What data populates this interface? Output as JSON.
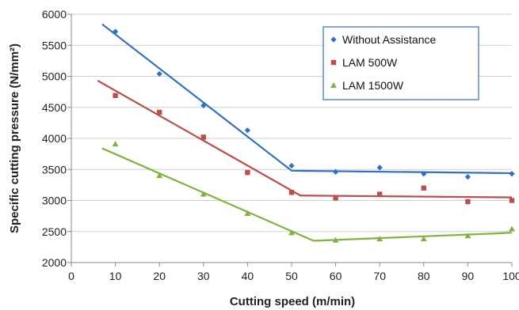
{
  "chart_data": {
    "type": "scatter",
    "xlabel": "Cutting speed (m/min)",
    "ylabel": "Specific cutting pressure (N/mm²)",
    "xlim": [
      0,
      100
    ],
    "ylim": [
      2000,
      6000
    ],
    "xticks": [
      "0",
      "10",
      "20",
      "30",
      "40",
      "50",
      "60",
      "70",
      "80",
      "90",
      "100"
    ],
    "yticks": [
      "2000",
      "2500",
      "3000",
      "3500",
      "4000",
      "4500",
      "5000",
      "5500",
      "6000"
    ],
    "grid": "horizontal",
    "legend_position": "top-right",
    "series": [
      {
        "name": "Without Assistance",
        "color": "#2f6fc4",
        "marker": "diamond",
        "points": [
          [
            10,
            5720
          ],
          [
            20,
            5040
          ],
          [
            30,
            4530
          ],
          [
            40,
            4130
          ],
          [
            50,
            3560
          ],
          [
            60,
            3460
          ],
          [
            70,
            3530
          ],
          [
            80,
            3430
          ],
          [
            90,
            3380
          ],
          [
            100,
            3430
          ]
        ],
        "trend": [
          [
            7,
            5840
          ],
          [
            50,
            3480
          ],
          [
            100,
            3440
          ]
        ]
      },
      {
        "name": "LAM 500W",
        "color": "#b8504b",
        "marker": "square",
        "points": [
          [
            10,
            4690
          ],
          [
            20,
            4420
          ],
          [
            30,
            4020
          ],
          [
            40,
            3450
          ],
          [
            50,
            3130
          ],
          [
            60,
            3040
          ],
          [
            70,
            3100
          ],
          [
            80,
            3200
          ],
          [
            90,
            2980
          ],
          [
            100,
            3000
          ]
        ],
        "trend": [
          [
            6,
            4930
          ],
          [
            52,
            3080
          ],
          [
            100,
            3050
          ]
        ]
      },
      {
        "name": "LAM 1500W",
        "color": "#7fb43c",
        "marker": "triangle",
        "points": [
          [
            10,
            3910
          ],
          [
            20,
            3400
          ],
          [
            30,
            3100
          ],
          [
            40,
            2790
          ],
          [
            50,
            2480
          ],
          [
            60,
            2360
          ],
          [
            70,
            2380
          ],
          [
            80,
            2380
          ],
          [
            90,
            2430
          ],
          [
            100,
            2540
          ]
        ],
        "trend": [
          [
            7,
            3840
          ],
          [
            55,
            2350
          ],
          [
            100,
            2480
          ]
        ]
      }
    ]
  }
}
